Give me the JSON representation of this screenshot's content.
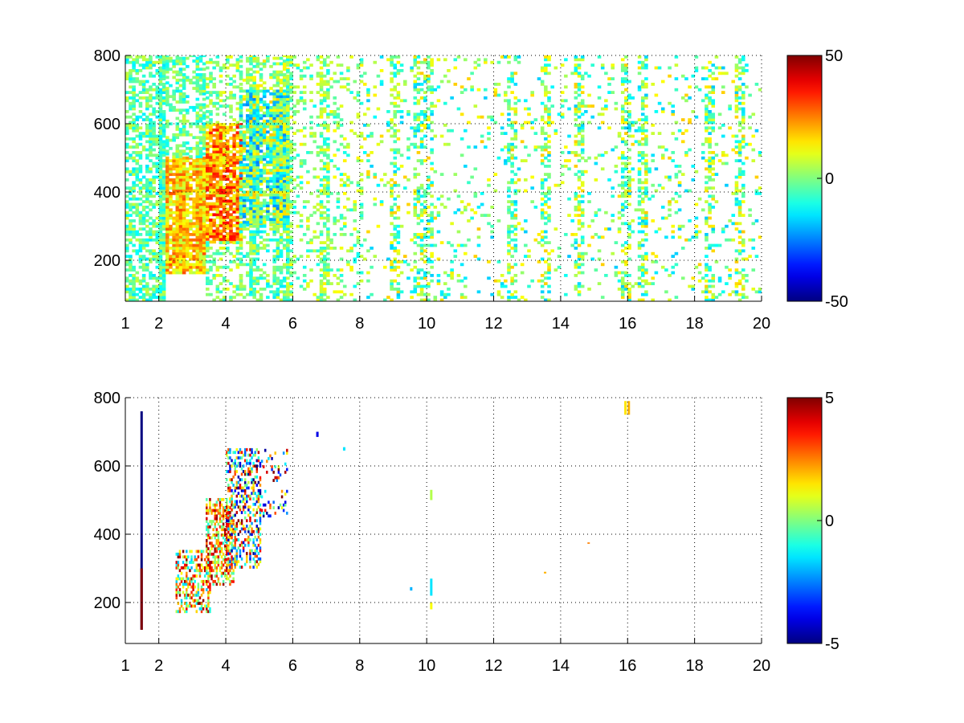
{
  "chart_data": [
    {
      "type": "heatmap",
      "colormap": "jet",
      "title": "",
      "xlabel": "",
      "ylabel": "",
      "xlim": [
        1,
        20
      ],
      "ylim": [
        80,
        800
      ],
      "xticks": [
        1,
        2,
        4,
        6,
        8,
        10,
        12,
        14,
        16,
        18,
        20
      ],
      "xtick_labels": [
        "1",
        "2",
        "4",
        "6",
        "8",
        "10",
        "12",
        "14",
        "16",
        "18",
        "20"
      ],
      "yticks": [
        200,
        400,
        600,
        800
      ],
      "ytick_labels": [
        "200",
        "400",
        "600",
        "800"
      ],
      "grid": "dotted",
      "colorbar": {
        "range": [
          -50,
          50
        ],
        "ticks": [
          50,
          0,
          -50
        ],
        "tick_labels": [
          "50",
          "0",
          "-50"
        ]
      },
      "seed": 7,
      "cell_size": [
        0.1,
        8
      ],
      "regions": [
        {
          "x": [
            1.0,
            2.2
          ],
          "y": [
            80,
            800
          ],
          "density": 0.55,
          "values": [
            -15,
            8
          ]
        },
        {
          "x": [
            2.2,
            3.4
          ],
          "y": [
            160,
            500
          ],
          "density": 0.75,
          "values": [
            5,
            30
          ]
        },
        {
          "x": [
            2.2,
            3.4
          ],
          "y": [
            500,
            800
          ],
          "density": 0.35,
          "values": [
            -15,
            8
          ]
        },
        {
          "x": [
            3.4,
            4.4
          ],
          "y": [
            250,
            600
          ],
          "density": 0.85,
          "values": [
            8,
            38
          ]
        },
        {
          "x": [
            3.4,
            4.4
          ],
          "y": [
            600,
            800
          ],
          "density": 0.4,
          "values": [
            -10,
            12
          ]
        },
        {
          "x": [
            3.4,
            4.4
          ],
          "y": [
            80,
            250
          ],
          "density": 0.45,
          "values": [
            -10,
            12
          ]
        },
        {
          "x": [
            4.4,
            5.8
          ],
          "y": [
            300,
            700
          ],
          "density": 0.75,
          "values": [
            -25,
            18
          ]
        },
        {
          "x": [
            4.4,
            5.8
          ],
          "y": [
            80,
            300
          ],
          "density": 0.3,
          "values": [
            -15,
            10
          ]
        },
        {
          "x": [
            4.4,
            5.8
          ],
          "y": [
            700,
            800
          ],
          "density": 0.3,
          "values": [
            -10,
            15
          ]
        },
        {
          "x": [
            5.8,
            8.0
          ],
          "y": [
            80,
            800
          ],
          "density": 0.2,
          "values": [
            -12,
            14
          ]
        },
        {
          "x": [
            8.0,
            20.0
          ],
          "y": [
            80,
            800
          ],
          "density": 0.1,
          "values": [
            -18,
            18
          ]
        }
      ],
      "stripes": [
        2.1,
        2.6,
        3.2,
        4.8,
        5.5,
        5.8,
        6.9,
        9.0,
        9.7,
        10.0,
        12.5,
        13.5,
        14.5,
        15.9,
        16.4,
        18.4,
        19.3
      ]
    },
    {
      "type": "heatmap",
      "colormap": "jet",
      "title": "",
      "xlabel": "",
      "ylabel": "",
      "xlim": [
        1,
        20
      ],
      "ylim": [
        80,
        800
      ],
      "xticks": [
        1,
        2,
        4,
        6,
        8,
        10,
        12,
        14,
        16,
        18,
        20
      ],
      "xtick_labels": [
        "1",
        "2",
        "4",
        "6",
        "8",
        "10",
        "12",
        "14",
        "16",
        "18",
        "20"
      ],
      "yticks": [
        200,
        400,
        600,
        800
      ],
      "ytick_labels": [
        "200",
        "400",
        "600",
        "800"
      ],
      "grid": "dotted",
      "colorbar": {
        "range": [
          -5,
          5
        ],
        "ticks": [
          5,
          0,
          -5
        ],
        "tick_labels": [
          "5",
          "0",
          "-5"
        ]
      },
      "seed": 23,
      "cell_size": [
        0.05,
        8
      ],
      "regions": [
        {
          "x": [
            2.5,
            3.5
          ],
          "y": [
            170,
            350
          ],
          "density": 0.45,
          "values": [
            -2,
            5
          ]
        },
        {
          "x": [
            3.4,
            4.2
          ],
          "y": [
            250,
            500
          ],
          "density": 0.55,
          "values": [
            -1,
            5
          ]
        },
        {
          "x": [
            4.0,
            5.0
          ],
          "y": [
            300,
            650
          ],
          "density": 0.4,
          "values": [
            -5,
            5
          ]
        },
        {
          "x": [
            5.0,
            5.8
          ],
          "y": [
            450,
            650
          ],
          "density": 0.12,
          "values": [
            -5,
            5
          ]
        }
      ],
      "points": [
        {
          "x": 1.45,
          "y": [
            120,
            760
          ],
          "value": -5
        },
        {
          "x": 1.45,
          "y": [
            120,
            300
          ],
          "value": 5
        },
        {
          "x": 6.7,
          "y": [
            685,
            700
          ],
          "value": -4
        },
        {
          "x": 7.5,
          "y": [
            645,
            655
          ],
          "value": -1.5
        },
        {
          "x": 9.5,
          "y": [
            235,
            245
          ],
          "value": -2
        },
        {
          "x": 10.1,
          "y": [
            180,
            200
          ],
          "value": 1.2
        },
        {
          "x": 10.1,
          "y": [
            220,
            270
          ],
          "value": -1.5
        },
        {
          "x": 10.1,
          "y": [
            500,
            530
          ],
          "value": 0.5
        },
        {
          "x": 13.5,
          "y": [
            285,
            290
          ],
          "value": 2
        },
        {
          "x": 14.8,
          "y": [
            372,
            376
          ],
          "value": 2.5
        },
        {
          "x": 15.9,
          "y": [
            750,
            790
          ],
          "value": 1.5
        },
        {
          "x": 16.0,
          "y": [
            750,
            790
          ],
          "value": 2
        }
      ]
    }
  ]
}
